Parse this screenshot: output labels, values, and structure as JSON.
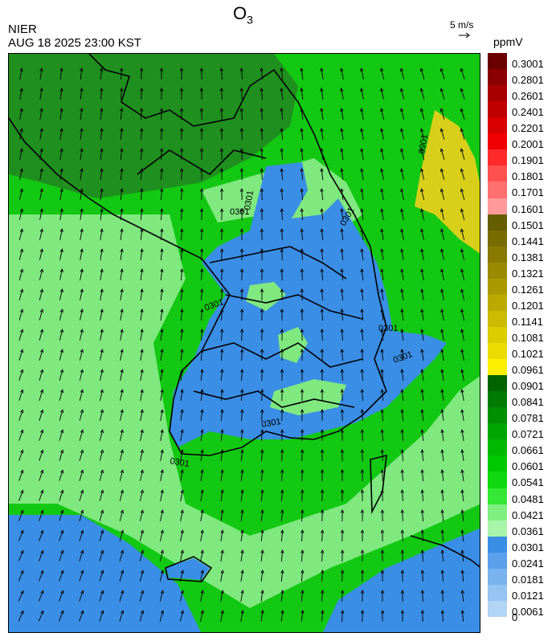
{
  "header": {
    "title": "O",
    "title_sub": "3",
    "organization": "NIER",
    "datetime": "AUG 18 2025 23:00 KST",
    "reference_vector": "5 m/s",
    "unit": "ppmV"
  },
  "legend": {
    "labels": [
      "0.3001",
      "0.2801",
      "0.2601",
      "0.2401",
      "0.2201",
      "0.2001",
      "0.1901",
      "0.1801",
      "0.1701",
      "0.1601",
      "0.1501",
      "0.1441",
      "0.1381",
      "0.1321",
      "0.1261",
      "0.1201",
      "0.1141",
      "0.1081",
      "0.1021",
      "0.0961",
      "0.0901",
      "0.0841",
      "0.0781",
      "0.0721",
      "0.0661",
      "0.0601",
      "0.0541",
      "0.0481",
      "0.0421",
      "0.0361",
      "0.0301",
      "0.0241",
      "0.0181",
      "0.0121",
      "0.0061",
      "0"
    ],
    "colors": [
      "#6b0000",
      "#8b0000",
      "#a80000",
      "#c00000",
      "#d80000",
      "#f00000",
      "#ff2a2a",
      "#ff5050",
      "#ff7070",
      "#ff9a9a",
      "#665c00",
      "#786c00",
      "#887a00",
      "#998a00",
      "#aa9a00",
      "#bbaa00",
      "#ccbb00",
      "#dccc00",
      "#ecdb00",
      "#ffef00",
      "#006400",
      "#007a00",
      "#008f00",
      "#00a500",
      "#00b800",
      "#00c800",
      "#10d810",
      "#35e835",
      "#7ff07f",
      "#a8f4a8",
      "#3a8ee6",
      "#5aa0eb",
      "#78b2ef",
      "#96c4f2",
      "#b2d4f5"
    ]
  },
  "contour_labels": [
    "0301",
    "0301",
    "0301",
    "0301",
    "0301",
    "0301",
    "0301",
    "0901",
    "0301"
  ],
  "colors": {
    "green_dark": "#1f8f1f",
    "green": "#12c812",
    "green_light": "#7fe87f",
    "blue": "#3a8ee6",
    "yellow": "#d8cf1a",
    "boundary": "#000000",
    "province_lines": "#c0c0c0"
  }
}
